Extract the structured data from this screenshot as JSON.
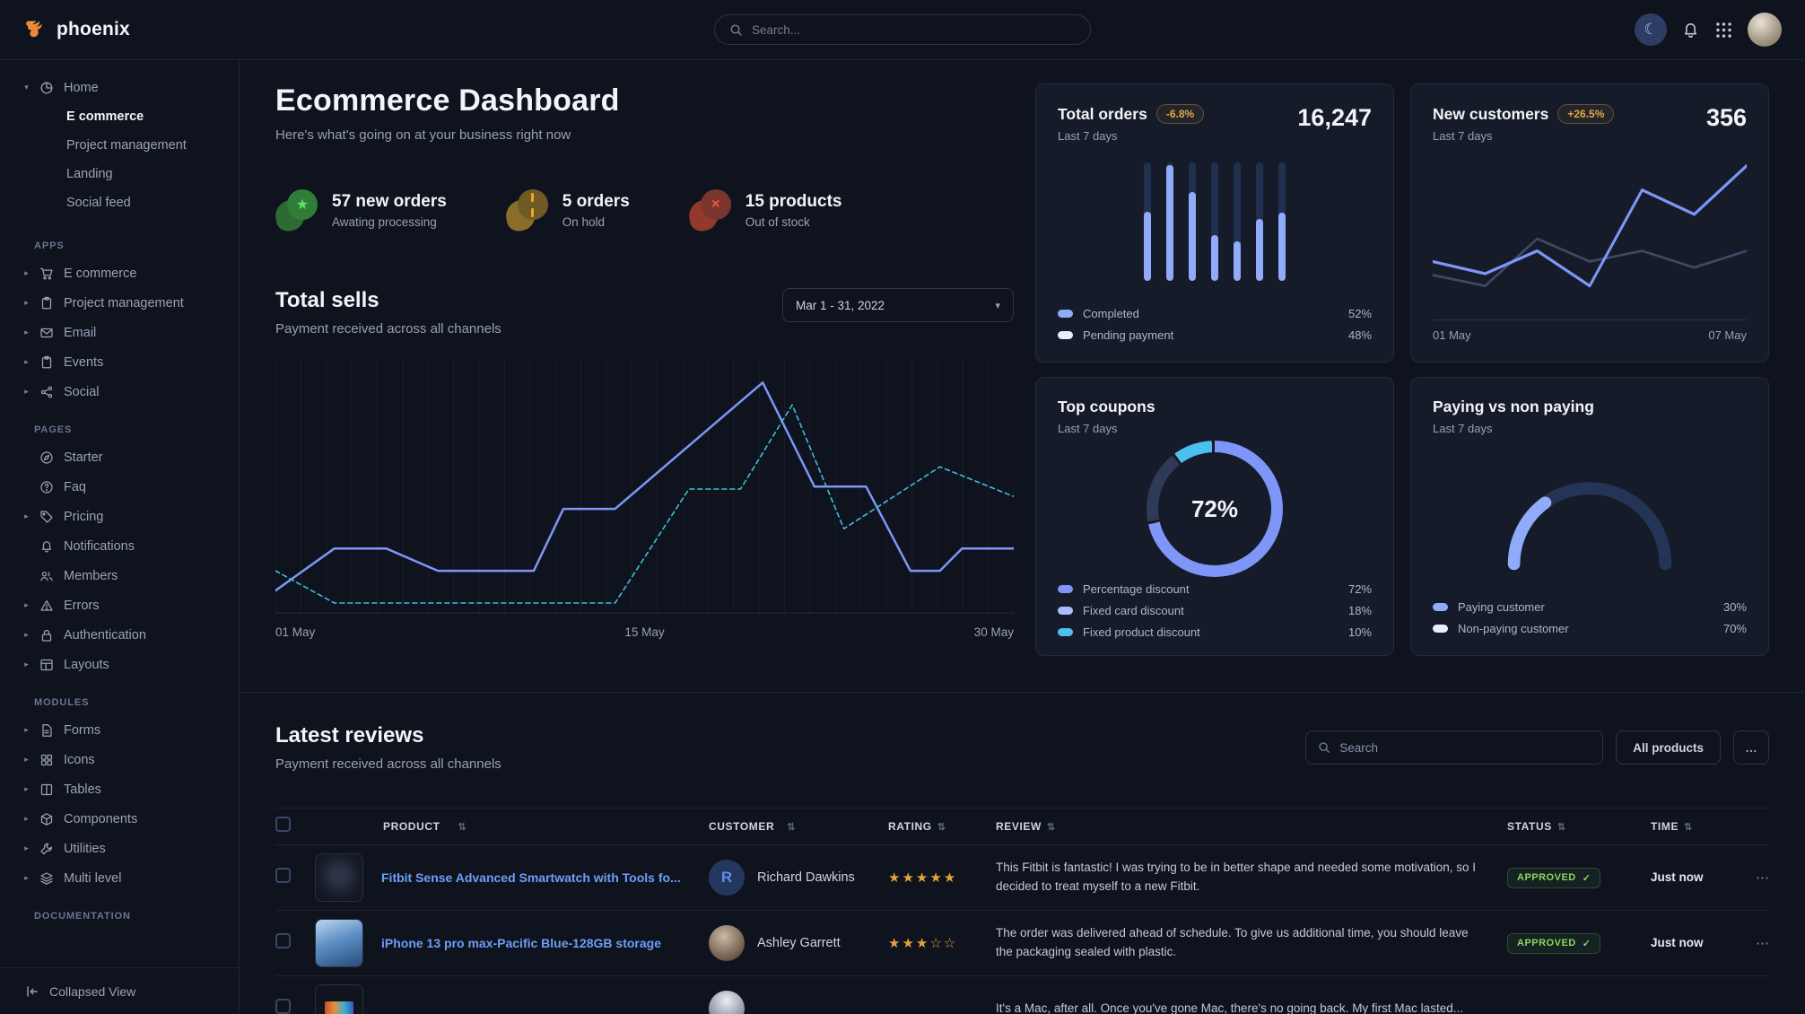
{
  "theme": {
    "accent": "#3874ff",
    "line_blue": "#7e96f7",
    "teal": "#3cbfd9",
    "warning": "#e5a54b",
    "success": "#8fd460",
    "link": "#6d9ef7"
  },
  "nav": {
    "brand": "phoenix",
    "search_placeholder": "Search...",
    "icons": {
      "theme": "moon-icon",
      "notifications": "bell-icon",
      "apps": "grid-9-icon",
      "avatar": "user-avatar"
    }
  },
  "sidebar": {
    "home": {
      "label": "Home",
      "icon": "pie-chart",
      "children": [
        "E commerce",
        "Project management",
        "Landing",
        "Social feed"
      ],
      "active_child": "E commerce"
    },
    "sections": [
      {
        "title": "APPS",
        "items": [
          {
            "label": "E commerce",
            "icon": "cart",
            "collapsible": true
          },
          {
            "label": "Project management",
            "icon": "clipboard",
            "collapsible": true
          },
          {
            "label": "Email",
            "icon": "mail",
            "collapsible": true
          },
          {
            "label": "Events",
            "icon": "clipboard",
            "collapsible": true
          },
          {
            "label": "Social",
            "icon": "share",
            "collapsible": true
          }
        ]
      },
      {
        "title": "PAGES",
        "items": [
          {
            "label": "Starter",
            "icon": "compass",
            "collapsible": false
          },
          {
            "label": "Faq",
            "icon": "question",
            "collapsible": false
          },
          {
            "label": "Pricing",
            "icon": "tag",
            "collapsible": true
          },
          {
            "label": "Notifications",
            "icon": "bell",
            "collapsible": false
          },
          {
            "label": "Members",
            "icon": "users",
            "collapsible": false
          },
          {
            "label": "Errors",
            "icon": "warning",
            "collapsible": true
          },
          {
            "label": "Authentication",
            "icon": "lock",
            "collapsible": true
          },
          {
            "label": "Layouts",
            "icon": "layout",
            "collapsible": true
          }
        ]
      },
      {
        "title": "MODULES",
        "items": [
          {
            "label": "Forms",
            "icon": "file",
            "collapsible": true
          },
          {
            "label": "Icons",
            "icon": "grid4",
            "collapsible": true
          },
          {
            "label": "Tables",
            "icon": "columns",
            "collapsible": true
          },
          {
            "label": "Components",
            "icon": "box",
            "collapsible": true
          },
          {
            "label": "Utilities",
            "icon": "wrench",
            "collapsible": true
          },
          {
            "label": "Multi level",
            "icon": "layers",
            "collapsible": true
          }
        ]
      },
      {
        "title": "DOCUMENTATION",
        "items": []
      }
    ],
    "footer": {
      "label": "Collapsed View",
      "icon": "collapse"
    }
  },
  "header": {
    "title": "Ecommerce Dashboard",
    "subtitle": "Here's what's going on at your business right now"
  },
  "stats": [
    {
      "value": "57 new orders",
      "caption": "Awating processing",
      "icon": "star",
      "color": "#2f7d38"
    },
    {
      "value": "5 orders",
      "caption": "On hold",
      "icon": "pause",
      "color": "#6f5a24"
    },
    {
      "value": "15 products",
      "caption": "Out of stock",
      "icon": "x",
      "color": "#7c352c"
    }
  ],
  "total_sells": {
    "title": "Total sells",
    "subtitle": "Payment received across all channels",
    "date_range": "Mar 1 - 31, 2022"
  },
  "cards": {
    "total_orders": {
      "title": "Total orders",
      "badge": "-6.8%",
      "period": "Last 7 days",
      "value": "16,247",
      "legend": [
        {
          "label": "Completed",
          "value": "52%",
          "swatch": "#8fabf9"
        },
        {
          "label": "Pending payment",
          "value": "48%",
          "swatch": "#e8eefc"
        }
      ]
    },
    "new_customers": {
      "title": "New customers",
      "badge": "+26.5%",
      "period": "Last 7 days",
      "value": "356",
      "x_labels": [
        "01 May",
        "07 May"
      ]
    },
    "top_coupons": {
      "title": "Top coupons",
      "period": "Last 7 days",
      "center_label": "72%",
      "legend": [
        {
          "label": "Percentage discount",
          "value": "72%",
          "swatch": "#7e96f7"
        },
        {
          "label": "Fixed card discount",
          "value": "18%",
          "swatch": "#aabdfa"
        },
        {
          "label": "Fixed product discount",
          "value": "10%",
          "swatch": "#4cc0ee"
        }
      ]
    },
    "paying": {
      "title": "Paying vs non paying",
      "period": "Last 7 days",
      "legend": [
        {
          "label": "Paying customer",
          "value": "30%",
          "swatch": "#8fabf9"
        },
        {
          "label": "Non-paying customer",
          "value": "70%",
          "swatch": "#e8eefc"
        }
      ]
    }
  },
  "reviews": {
    "title": "Latest reviews",
    "subtitle": "Payment received across all channels",
    "search_placeholder": "Search",
    "filter_button": "All products",
    "menu_button": "…",
    "columns": [
      "PRODUCT",
      "CUSTOMER",
      "RATING",
      "REVIEW",
      "STATUS",
      "TIME"
    ],
    "rows": [
      {
        "product": "Fitbit Sense Advanced Smartwatch with Tools fo...",
        "thumb": "smartwatch",
        "customer": "Richard Dawkins",
        "avatar": "initial",
        "avatar_initial": "R",
        "rating": 5,
        "review": "This Fitbit is fantastic! I was trying to be in better shape and needed some motivation, so I decided to treat myself to a new Fitbit.",
        "status": "APPROVED",
        "time": "Just now"
      },
      {
        "product": "iPhone 13 pro max-Pacific Blue-128GB storage",
        "thumb": "iphone",
        "customer": "Ashley Garrett",
        "avatar": "photo",
        "avatar_initial": "",
        "rating": 3,
        "review": "The order was delivered ahead of schedule. To give us additional time, you should leave the packaging sealed with plastic.",
        "status": "APPROVED",
        "time": "Just now"
      },
      {
        "product": "",
        "thumb": "macbook",
        "customer": "",
        "avatar": "photo2",
        "avatar_initial": "",
        "rating": 0,
        "review": "It's a Mac, after all. Once you've gone Mac, there's no going back. My first Mac lasted...",
        "status": "",
        "time": ""
      }
    ]
  },
  "chart_data": [
    {
      "id": "total_sells",
      "type": "line",
      "title": "Total sells",
      "x_axis_labels": [
        "01 May",
        "15 May",
        "30 May"
      ],
      "ylim": [
        0,
        100
      ],
      "grid": "vertical",
      "series": [
        {
          "name": "current period",
          "color": "#7e96f7",
          "style": "solid",
          "points": [
            [
              0,
              9
            ],
            [
              8,
              26
            ],
            [
              15,
              26
            ],
            [
              22,
              17
            ],
            [
              35,
              17
            ],
            [
              39,
              42
            ],
            [
              46,
              42
            ],
            [
              66,
              93
            ],
            [
              73,
              51
            ],
            [
              80,
              51
            ],
            [
              86,
              17
            ],
            [
              90,
              17
            ],
            [
              93,
              26
            ],
            [
              100,
              26
            ]
          ]
        },
        {
          "name": "previous period",
          "color": "#3cbfd9",
          "style": "dashed",
          "points": [
            [
              0,
              17
            ],
            [
              8,
              4
            ],
            [
              46,
              4
            ],
            [
              56,
              50
            ],
            [
              63,
              50
            ],
            [
              70,
              84
            ],
            [
              77,
              34
            ],
            [
              90,
              59
            ],
            [
              100,
              47
            ]
          ]
        }
      ]
    },
    {
      "id": "total_orders",
      "type": "bar",
      "title": "Total orders — completed share per day (last 7 days)",
      "values": [
        58,
        97,
        75,
        38,
        33,
        52,
        57
      ],
      "ylim": [
        0,
        100
      ],
      "bar_color": "#8fabf9",
      "track_color": "#22304f"
    },
    {
      "id": "new_customers",
      "type": "line",
      "title": "New customers",
      "x_axis_labels": [
        "01 May",
        "07 May"
      ],
      "ylim": [
        0,
        100
      ],
      "series": [
        {
          "name": "previous",
          "color": "#3e4963",
          "style": "solid",
          "points": [
            [
              0,
              24
            ],
            [
              16.7,
              17
            ],
            [
              33.3,
              48
            ],
            [
              50,
              33
            ],
            [
              66.7,
              40
            ],
            [
              83.3,
              29
            ],
            [
              100,
              40
            ]
          ]
        },
        {
          "name": "current",
          "color": "#7e96f7",
          "style": "solid",
          "points": [
            [
              0,
              33
            ],
            [
              16.7,
              25
            ],
            [
              33.3,
              40
            ],
            [
              50,
              17
            ],
            [
              66.7,
              80
            ],
            [
              83.3,
              64
            ],
            [
              100,
              96
            ]
          ]
        }
      ]
    },
    {
      "id": "top_coupons",
      "type": "pie",
      "title": "Top coupons",
      "center_label": "72%",
      "segments": [
        {
          "label": "Percentage discount",
          "value": 72,
          "color": "#7e96f7"
        },
        {
          "label": "Fixed card discount",
          "value": 18,
          "color": "#2e3a57"
        },
        {
          "label": "Fixed product discount",
          "value": 10,
          "color": "#4cc0ee"
        }
      ]
    },
    {
      "id": "paying_gauge",
      "type": "pie",
      "title": "Paying vs non paying (half gauge)",
      "segments": [
        {
          "label": "Paying customer",
          "value": 30,
          "color": "#8fabf9"
        },
        {
          "label": "Non-paying customer",
          "value": 70,
          "color": "#243456"
        }
      ]
    }
  ]
}
